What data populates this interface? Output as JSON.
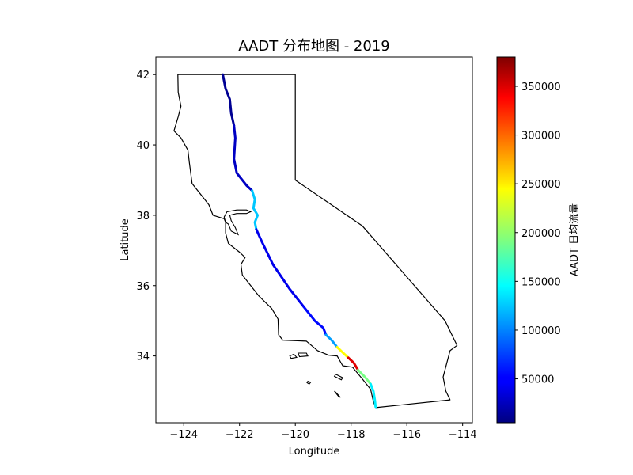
{
  "title": "AADT 分布地图 - 2019",
  "xlabel": "Longitude",
  "ylabel": "Latitude",
  "colorbar_label": "AADT 日均流量",
  "colormap": "jet",
  "chart_data": {
    "type": "map",
    "title": "AADT 分布地图 - 2019",
    "xlabel": "Longitude",
    "ylabel": "Latitude",
    "xlim": [
      -125,
      -113.65
    ],
    "ylim": [
      32.1,
      42.5
    ],
    "xticks": [
      -124,
      -122,
      -120,
      -118,
      -116,
      -114
    ],
    "yticks": [
      34,
      36,
      38,
      40,
      42
    ],
    "grid": false,
    "colorbar": {
      "label": "AADT 日均流量",
      "min": 5000,
      "max": 380000,
      "ticks": [
        50000,
        100000,
        150000,
        200000,
        250000,
        300000,
        350000
      ],
      "colormap": "jet"
    },
    "state_outline": [
      [
        -124.21,
        42.0
      ],
      [
        -120.0,
        42.0
      ],
      [
        -120.0,
        39.0
      ],
      [
        -117.6,
        37.7
      ],
      [
        -114.63,
        35.0
      ],
      [
        -114.2,
        34.3
      ],
      [
        -114.45,
        34.15
      ],
      [
        -114.7,
        33.4
      ],
      [
        -114.6,
        33.0
      ],
      [
        -114.45,
        32.75
      ],
      [
        -117.12,
        32.53
      ],
      [
        -117.2,
        32.7
      ],
      [
        -117.3,
        33.05
      ],
      [
        -117.6,
        33.35
      ],
      [
        -117.95,
        33.68
      ],
      [
        -118.3,
        33.72
      ],
      [
        -118.5,
        34.0
      ],
      [
        -118.8,
        34.02
      ],
      [
        -119.2,
        34.15
      ],
      [
        -119.6,
        34.42
      ],
      [
        -120.45,
        34.45
      ],
      [
        -120.6,
        34.6
      ],
      [
        -120.62,
        35.05
      ],
      [
        -120.85,
        35.35
      ],
      [
        -121.3,
        35.7
      ],
      [
        -121.9,
        36.3
      ],
      [
        -121.95,
        36.6
      ],
      [
        -121.8,
        36.8
      ],
      [
        -122.0,
        36.95
      ],
      [
        -122.4,
        37.2
      ],
      [
        -122.5,
        37.5
      ],
      [
        -122.5,
        37.8
      ],
      [
        -122.55,
        37.9
      ],
      [
        -122.95,
        38.0
      ],
      [
        -123.1,
        38.3
      ],
      [
        -123.7,
        38.9
      ],
      [
        -123.8,
        39.5
      ],
      [
        -123.85,
        39.85
      ],
      [
        -124.1,
        40.2
      ],
      [
        -124.35,
        40.4
      ],
      [
        -124.2,
        40.8
      ],
      [
        -124.1,
        41.1
      ],
      [
        -124.2,
        41.5
      ],
      [
        -124.21,
        42.0
      ]
    ],
    "bay_outline": [
      [
        -122.5,
        37.8
      ],
      [
        -122.4,
        37.75
      ],
      [
        -122.3,
        37.55
      ],
      [
        -122.05,
        37.45
      ],
      [
        -122.15,
        37.65
      ],
      [
        -122.3,
        37.85
      ],
      [
        -122.35,
        38.0
      ],
      [
        -122.1,
        38.05
      ],
      [
        -121.75,
        38.05
      ],
      [
        -121.6,
        38.1
      ],
      [
        -121.75,
        38.15
      ],
      [
        -122.1,
        38.15
      ],
      [
        -122.45,
        38.1
      ],
      [
        -122.55,
        37.95
      ],
      [
        -122.5,
        37.8
      ]
    ],
    "islands": [
      [
        [
          -119.9,
          34.08
        ],
        [
          -119.6,
          34.08
        ],
        [
          -119.55,
          34.0
        ],
        [
          -119.85,
          33.98
        ],
        [
          -119.9,
          34.08
        ]
      ],
      [
        [
          -120.2,
          34.0
        ],
        [
          -120.05,
          34.05
        ],
        [
          -119.95,
          33.96
        ],
        [
          -120.15,
          33.93
        ],
        [
          -120.2,
          34.0
        ]
      ],
      [
        [
          -118.55,
          33.48
        ],
        [
          -118.3,
          33.38
        ],
        [
          -118.35,
          33.32
        ],
        [
          -118.6,
          33.42
        ],
        [
          -118.55,
          33.48
        ]
      ],
      [
        [
          -118.6,
          33.0
        ],
        [
          -118.45,
          32.85
        ],
        [
          -118.38,
          32.82
        ],
        [
          -118.55,
          32.97
        ],
        [
          -118.6,
          33.0
        ]
      ],
      [
        [
          -119.55,
          33.28
        ],
        [
          -119.45,
          33.25
        ],
        [
          -119.5,
          33.2
        ],
        [
          -119.58,
          33.24
        ],
        [
          -119.55,
          33.28
        ]
      ]
    ],
    "road_segments": [
      {
        "lon": [
          -122.6,
          -122.5,
          -122.35,
          -122.3,
          -122.2
        ],
        "lat": [
          42.0,
          41.6,
          41.3,
          40.9,
          40.55
        ],
        "aadt": 12000
      },
      {
        "lon": [
          -122.2,
          -122.15,
          -122.2,
          -122.1,
          -121.75,
          -121.55
        ],
        "lat": [
          40.55,
          40.2,
          39.6,
          39.2,
          38.85,
          38.7
        ],
        "aadt": 30000
      },
      {
        "lon": [
          -121.55,
          -121.45,
          -121.5,
          -121.35,
          -121.45,
          -121.4
        ],
        "lat": [
          38.7,
          38.45,
          38.2,
          38.0,
          37.8,
          37.6
        ],
        "aadt": 125000
      },
      {
        "lon": [
          -121.4,
          -121.2,
          -120.8,
          -120.2,
          -119.7
        ],
        "lat": [
          37.6,
          37.25,
          36.6,
          35.9,
          35.4
        ],
        "aadt": 45000
      },
      {
        "lon": [
          -119.7,
          -119.3,
          -119.0,
          -118.9
        ],
        "lat": [
          35.4,
          35.0,
          34.8,
          34.6
        ],
        "aadt": 55000
      },
      {
        "lon": [
          -118.9,
          -118.7,
          -118.5
        ],
        "lat": [
          34.6,
          34.45,
          34.25
        ],
        "aadt": 110000
      },
      {
        "lon": [
          -118.5,
          -118.3,
          -118.1
        ],
        "lat": [
          34.25,
          34.1,
          33.95
        ],
        "aadt": 240000
      },
      {
        "lon": [
          -118.1,
          -117.9,
          -117.75
        ],
        "lat": [
          33.95,
          33.8,
          33.6
        ],
        "aadt": 345000
      },
      {
        "lon": [
          -117.75,
          -117.5,
          -117.3
        ],
        "lat": [
          33.6,
          33.4,
          33.2
        ],
        "aadt": 190000
      },
      {
        "lon": [
          -117.3,
          -117.2,
          -117.15,
          -117.12
        ],
        "lat": [
          33.2,
          33.0,
          32.75,
          32.55
        ],
        "aadt": 140000
      }
    ]
  }
}
